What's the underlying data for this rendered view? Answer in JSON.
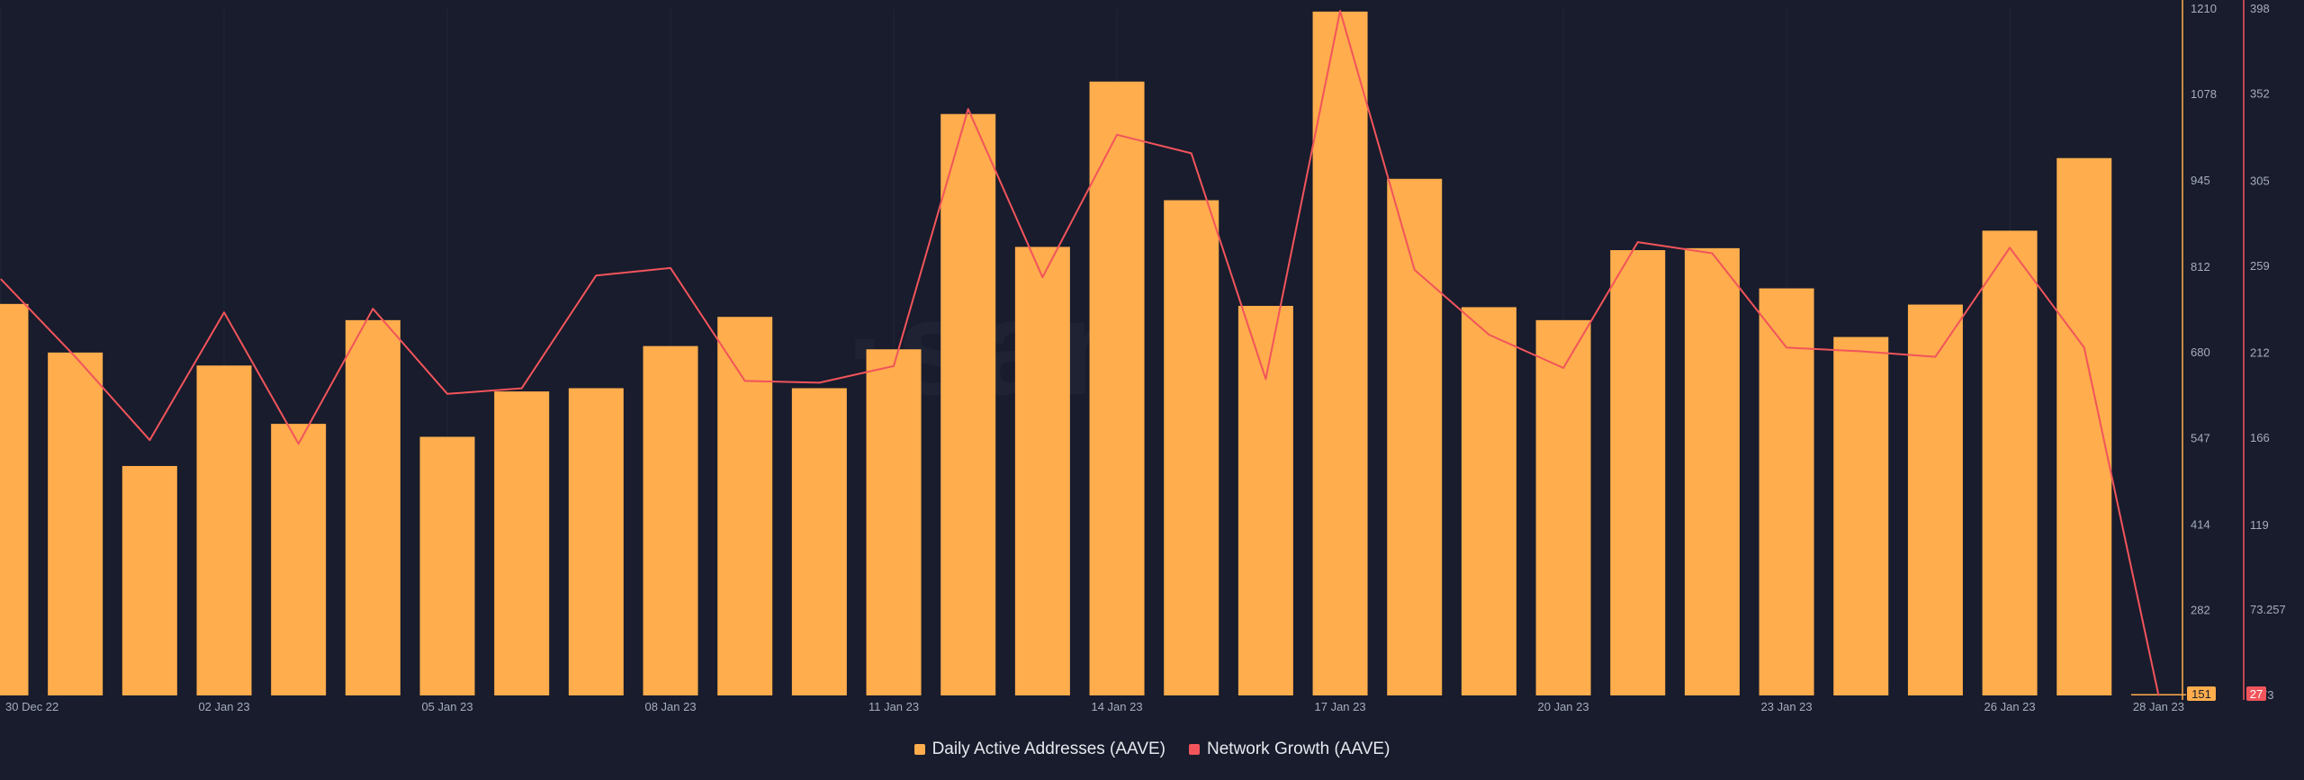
{
  "chart_data": {
    "type": "bar",
    "x": [
      "30 Dec 22",
      "31 Dec 22",
      "01 Jan 23",
      "02 Jan 23",
      "03 Jan 23",
      "04 Jan 23",
      "05 Jan 23",
      "06 Jan 23",
      "07 Jan 23",
      "08 Jan 23",
      "09 Jan 23",
      "10 Jan 23",
      "11 Jan 23",
      "12 Jan 23",
      "13 Jan 23",
      "14 Jan 23",
      "15 Jan 23",
      "16 Jan 23",
      "17 Jan 23",
      "18 Jan 23",
      "19 Jan 23",
      "20 Jan 23",
      "21 Jan 23",
      "22 Jan 23",
      "23 Jan 23",
      "24 Jan 23",
      "25 Jan 23",
      "26 Jan 23",
      "27 Jan 23",
      "28 Jan 23"
    ],
    "x_tick_labels": [
      "30 Dec 22",
      "02 Jan 23",
      "05 Jan 23",
      "08 Jan 23",
      "11 Jan 23",
      "14 Jan 23",
      "17 Jan 23",
      "20 Jan 23",
      "23 Jan 23",
      "26 Jan 23",
      "28 Jan 23"
    ],
    "series": [
      {
        "name": "Daily Active Addresses (AAVE)",
        "kind": "bar",
        "axis": "left",
        "color": "#ffad4d",
        "values": [
          755,
          680,
          505,
          660,
          570,
          730,
          550,
          620,
          625,
          690,
          735,
          625,
          685,
          1048,
          843,
          1098,
          915,
          752,
          1206,
          948,
          750,
          730,
          838,
          841,
          779,
          704,
          754,
          868,
          980,
          151
        ]
      },
      {
        "name": "Network Growth (AAVE)",
        "kind": "line",
        "axis": "right",
        "color": "#f2545b",
        "values": [
          252,
          210,
          165,
          234,
          163,
          236,
          190,
          193,
          254,
          258,
          197,
          196,
          205,
          344,
          253,
          330,
          320,
          198,
          397,
          257,
          222,
          204,
          272,
          266,
          215,
          213,
          210,
          269,
          215,
          27
        ]
      }
    ],
    "y_left": {
      "min": 151,
      "max": 1210,
      "ticks": [
        "1210",
        "1078",
        "945",
        "812",
        "680",
        "547",
        "414",
        "282"
      ],
      "current_label": "151"
    },
    "y_right": {
      "min": 27,
      "max": 398,
      "ticks": [
        "398",
        "352",
        "305",
        "259",
        "212",
        "166",
        "119",
        "73.257"
      ],
      "current_label": "27",
      "partial_label": "73"
    },
    "grid": true,
    "legend_position": "bottom-center"
  }
}
